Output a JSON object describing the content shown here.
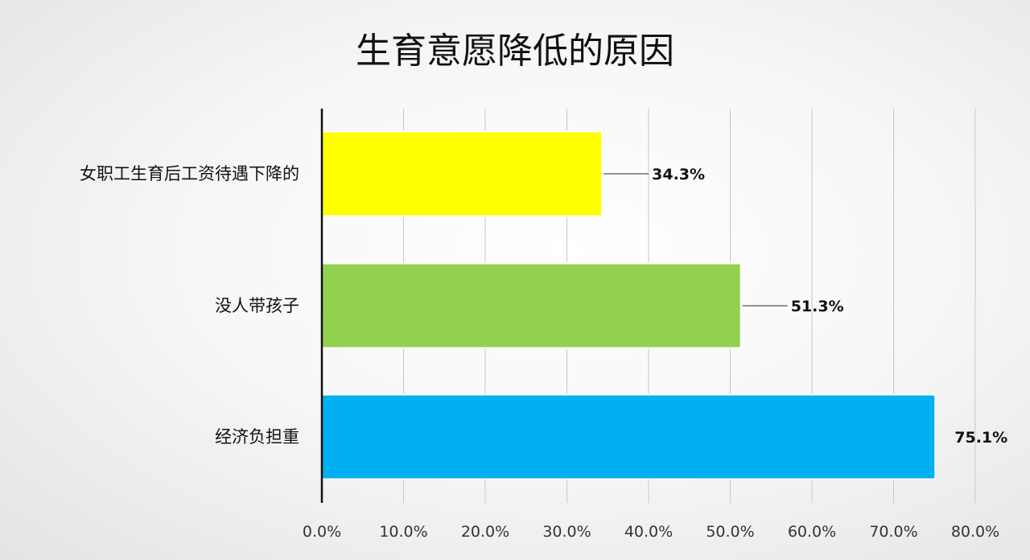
{
  "chart_data": {
    "type": "bar",
    "orientation": "horizontal",
    "title": "生育意愿降低的原因",
    "categories": [
      "女职工生育后工资待遇下降的",
      "没人带孩子",
      "经济负担重"
    ],
    "values": [
      34.3,
      51.3,
      75.1
    ],
    "value_labels": [
      "34.3%",
      "51.3%",
      "75.1%"
    ],
    "colors": [
      "#ffff00",
      "#92d050",
      "#00b0f0"
    ],
    "xlim": [
      0,
      80
    ],
    "xticks": [
      "0.0%",
      "10.0%",
      "20.0%",
      "30.0%",
      "40.0%",
      "50.0%",
      "60.0%",
      "70.0%",
      "80.0%"
    ],
    "grid": true,
    "legend": "none",
    "xlabel": "",
    "ylabel": ""
  }
}
